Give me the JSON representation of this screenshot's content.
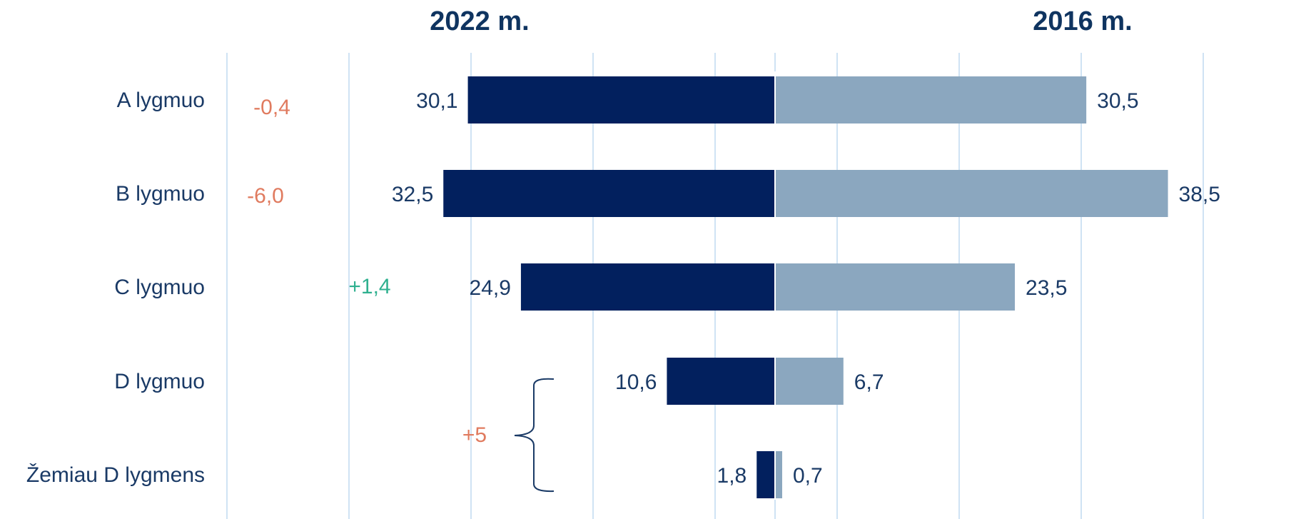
{
  "chart_data": {
    "type": "bar",
    "title_left": "2022 m.",
    "title_right": "2016 m.",
    "categories": [
      "A lygmuo",
      "B lygmuo",
      "C lygmuo",
      "D lygmuo",
      "Žemiau D lygmens"
    ],
    "series": [
      {
        "name": "2022 m.",
        "values": [
          30.1,
          32.5,
          24.9,
          10.6,
          1.8
        ],
        "labels": [
          "30,1",
          "32,5",
          "24,9",
          "10,6",
          "1,8"
        ]
      },
      {
        "name": "2016 m.",
        "values": [
          30.5,
          38.5,
          23.5,
          6.7,
          0.7
        ],
        "labels": [
          "30,5",
          "38,5",
          "23,5",
          "6,7",
          "0,7"
        ]
      }
    ],
    "differences": [
      {
        "category": "A lygmuo",
        "label": "-0,4",
        "color": "#e07b5f"
      },
      {
        "category": "B lygmuo",
        "label": "-6,0",
        "color": "#e07b5f"
      },
      {
        "category": "C lygmuo",
        "label": "+1,4",
        "color": "#2fb08f"
      }
    ],
    "combined_difference": {
      "categories": [
        "D lygmuo",
        "Žemiau D lygmens"
      ],
      "label": "+5",
      "color": "#e07b5f"
    },
    "colors": {
      "left_bars": "#02205e",
      "right_bars": "#8ba7bf",
      "grid": "#cfe3f4",
      "text": "#1a3a66",
      "title": "#0f3460"
    },
    "grid": true
  }
}
